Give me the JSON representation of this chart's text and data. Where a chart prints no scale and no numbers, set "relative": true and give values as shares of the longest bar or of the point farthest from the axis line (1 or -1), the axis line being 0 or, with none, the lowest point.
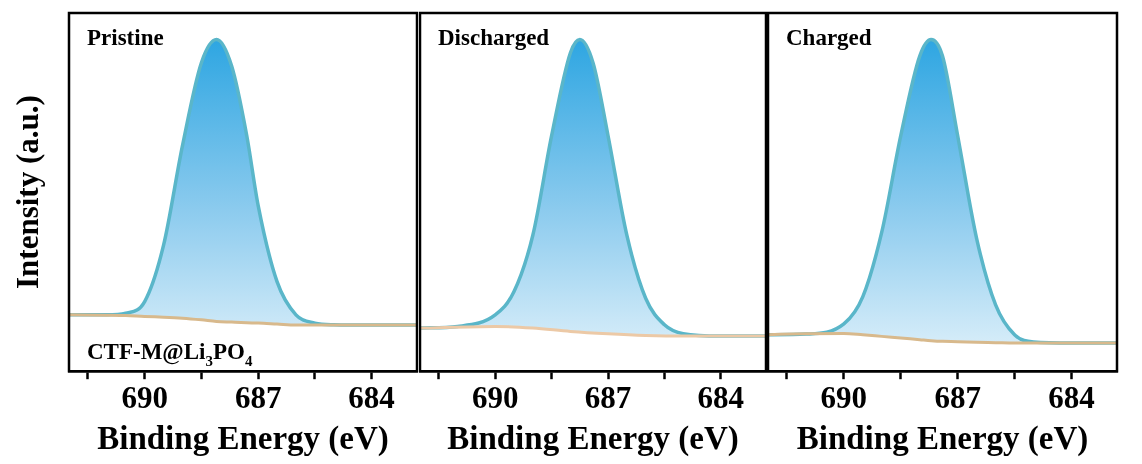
{
  "chart_data": [
    {
      "type": "line",
      "title": "Pristine",
      "xlabel": "Binding Energy (eV)",
      "ylabel": "Intensity (a.u.)",
      "relative": true,
      "tick_labels": "x",
      "xlim": [
        692,
        682.8
      ],
      "xticks": [
        {
          "value": 691.5,
          "label": null
        },
        690,
        {
          "value": 688.5,
          "label": null
        },
        687,
        {
          "value": 685.5,
          "label": null
        },
        684
      ],
      "annotations": [
        "CTF-M@Li$_{3}$PO$_{4}$"
      ],
      "marker": "none",
      "grid": false,
      "legend": false,
      "series": [
        {
          "type": "area",
          "color": "#5ab6c9",
          "x": [
            692,
            691,
            690.5,
            690,
            689.5,
            689,
            688.5,
            688.1,
            687.7,
            687.3,
            687,
            686.5,
            686,
            685.5,
            685,
            684,
            682.8
          ],
          "values": [
            0.17,
            0.17,
            0.175,
            0.21,
            0.38,
            0.68,
            0.93,
            1.0,
            0.92,
            0.71,
            0.5,
            0.27,
            0.17,
            0.145,
            0.14,
            0.139,
            0.139
          ]
        },
        {
          "color": "#d8b98c",
          "x": [
            692,
            691,
            690.5,
            690,
            689.5,
            689,
            688.5,
            688.1,
            687.7,
            687.3,
            687,
            686.5,
            686,
            685.5,
            685,
            684,
            682.8
          ],
          "values": [
            0.17,
            0.169,
            0.168,
            0.165,
            0.163,
            0.16,
            0.155,
            0.15,
            0.148,
            0.146,
            0.145,
            0.142,
            0.139,
            0.139,
            0.139,
            0.139,
            0.139
          ]
        }
      ]
    },
    {
      "type": "line",
      "title": "Discharged",
      "xlabel": "Binding Energy (eV)",
      "relative": true,
      "tick_labels": "x",
      "xlim": [
        692,
        682.8
      ],
      "xticks": [
        {
          "value": 691.5,
          "label": null
        },
        690,
        {
          "value": 688.5,
          "label": null
        },
        687,
        {
          "value": 685.5,
          "label": null
        },
        684
      ],
      "marker": "none",
      "grid": false,
      "legend": false,
      "series": [
        {
          "type": "area",
          "color": "#5ab6c9",
          "x": [
            692,
            691,
            690,
            689.5,
            689,
            688.5,
            688,
            687.75,
            687.4,
            687,
            686.5,
            686,
            685.5,
            685,
            684,
            682.8
          ],
          "values": [
            0.13,
            0.135,
            0.17,
            0.24,
            0.41,
            0.71,
            0.96,
            1.0,
            0.93,
            0.71,
            0.41,
            0.22,
            0.14,
            0.113,
            0.106,
            0.106
          ]
        },
        {
          "color": "#ecc9a6",
          "x": [
            692,
            690,
            689,
            688,
            687,
            686,
            685,
            684,
            682.8
          ],
          "values": [
            0.13,
            0.135,
            0.13,
            0.12,
            0.113,
            0.108,
            0.106,
            0.106,
            0.106
          ]
        }
      ]
    },
    {
      "type": "line",
      "title": "Charged",
      "xlabel": "Binding Energy (eV)",
      "relative": true,
      "tick_labels": "x",
      "xlim": [
        692,
        682.8
      ],
      "xticks": [
        {
          "value": 691.5,
          "label": null
        },
        690,
        {
          "value": 688.5,
          "label": null
        },
        687,
        {
          "value": 685.5,
          "label": null
        },
        684
      ],
      "marker": "none",
      "grid": false,
      "legend": false,
      "series": [
        {
          "type": "area",
          "color": "#5ab6c9",
          "x": [
            692,
            691,
            690,
            689.5,
            689,
            688.5,
            688,
            687.7,
            687.4,
            687,
            686.5,
            686,
            685.5,
            685,
            684,
            682.8
          ],
          "values": [
            0.11,
            0.112,
            0.143,
            0.225,
            0.42,
            0.71,
            0.95,
            1.0,
            0.95,
            0.71,
            0.4,
            0.2,
            0.11,
            0.088,
            0.085,
            0.085
          ]
        },
        {
          "color": "#d8b98c",
          "x": [
            692,
            691,
            690,
            689.5,
            689,
            688.5,
            688,
            687.7,
            687.4,
            687,
            686.5,
            686,
            685.5,
            685,
            684,
            682.8
          ],
          "values": [
            0.11,
            0.113,
            0.114,
            0.11,
            0.105,
            0.1,
            0.095,
            0.092,
            0.09,
            0.089,
            0.087,
            0.086,
            0.085,
            0.085,
            0.085,
            0.085
          ]
        }
      ]
    }
  ]
}
